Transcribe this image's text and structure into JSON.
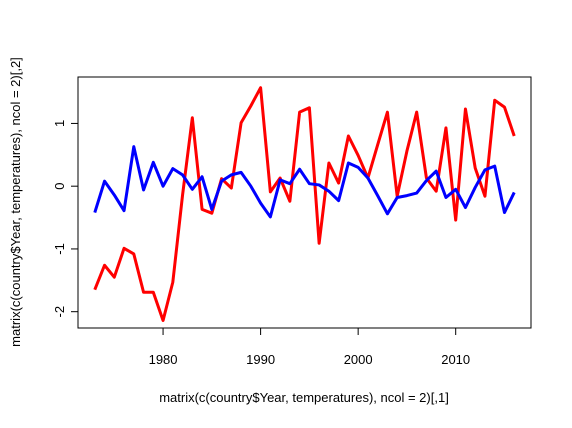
{
  "chart_data": {
    "type": "line",
    "xlabel": "matrix(c(country$Year, temperatures), ncol = 2)[,1]",
    "ylabel": "matrix(c(country$Year, temperatures), ncol = 2)[,2]",
    "x": [
      1973,
      1974,
      1975,
      1976,
      1977,
      1978,
      1979,
      1980,
      1981,
      1982,
      1983,
      1984,
      1985,
      1986,
      1987,
      1988,
      1989,
      1990,
      1991,
      1992,
      1993,
      1994,
      1995,
      1996,
      1997,
      1998,
      1999,
      2000,
      2001,
      2002,
      2003,
      2004,
      2005,
      2006,
      2007,
      2008,
      2009,
      2010,
      2011,
      2012,
      2013,
      2014,
      2015,
      2016
    ],
    "series": [
      {
        "color": "#ff0000",
        "values": [
          -1.65,
          -1.26,
          -1.45,
          -0.99,
          -1.08,
          -1.69,
          -1.69,
          -2.14,
          -1.53,
          -0.14,
          1.09,
          -0.37,
          -0.43,
          0.12,
          -0.03,
          1.01,
          1.28,
          1.57,
          -0.09,
          0.13,
          -0.24,
          1.18,
          1.25,
          -0.91,
          0.37,
          0.05,
          0.8,
          0.49,
          0.13,
          0.66,
          1.18,
          -0.16,
          0.56,
          1.18,
          0.13,
          -0.08,
          0.93,
          -0.54,
          1.23,
          0.29,
          -0.16,
          1.37,
          1.26,
          0.8
        ]
      },
      {
        "color": "#0000ff",
        "values": [
          -0.42,
          0.08,
          -0.14,
          -0.39,
          0.63,
          -0.06,
          0.38,
          0.0,
          0.28,
          0.18,
          -0.05,
          0.15,
          -0.37,
          0.08,
          0.18,
          0.22,
          0.0,
          -0.27,
          -0.49,
          0.1,
          0.04,
          0.27,
          0.04,
          0.02,
          -0.08,
          -0.23,
          0.37,
          0.3,
          0.13,
          -0.15,
          -0.44,
          -0.18,
          -0.15,
          -0.11,
          0.09,
          0.24,
          -0.18,
          -0.05,
          -0.34,
          -0.02,
          0.26,
          0.32,
          -0.42,
          -0.1
        ]
      }
    ],
    "xlim": [
      1971.28,
      2017.72
    ],
    "xticks": [
      1980,
      1990,
      2000,
      2010
    ],
    "ylim": [
      -2.26,
      1.74
    ],
    "yticks": [
      -2,
      -1,
      0,
      1
    ]
  }
}
